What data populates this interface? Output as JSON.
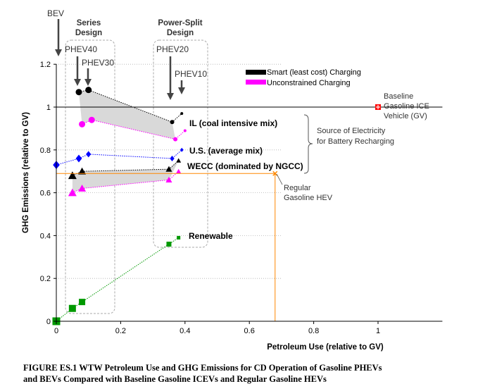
{
  "chart_data": {
    "type": "scatter",
    "xlabel": "Petroleum Use (relative to GV)",
    "ylabel": "GHG Emissions (relative to GV)",
    "xlim": [
      0,
      1.2
    ],
    "ylim": [
      0,
      1.2
    ],
    "xticks": [
      0,
      0.2,
      0.4,
      0.6,
      0.8,
      1
    ],
    "xtick_labels": [
      "0",
      "0.2",
      "0.4",
      "0.6",
      "0.8",
      "1"
    ],
    "yticks": [
      0,
      0.2,
      0.4,
      0.6,
      0.8,
      1,
      1.2
    ],
    "ytick_labels": [
      "0",
      "0.2",
      "0.4",
      "0.6",
      "0.8",
      "1",
      "1.2"
    ],
    "legend": [
      {
        "name": "Smart (least cost) Charging",
        "color": "#000000"
      },
      {
        "name": "Unconstrained Charging",
        "color": "#ff00ff"
      }
    ],
    "series": [
      {
        "name": "IL smart",
        "color": "#000000",
        "style": "dotted",
        "marker": "circle",
        "x": [
          0.07,
          0.1,
          0.36,
          0.39
        ],
        "y": [
          1.07,
          1.08,
          0.93,
          0.97
        ],
        "sizes": [
          9,
          9,
          6,
          4
        ]
      },
      {
        "name": "IL unconstrained",
        "color": "#ff00ff",
        "style": "dotted",
        "marker": "circle",
        "x": [
          0.08,
          0.11,
          0.37,
          0.4
        ],
        "y": [
          0.92,
          0.94,
          0.85,
          0.89
        ],
        "sizes": [
          9,
          9,
          6,
          4
        ]
      },
      {
        "name": "U.S. average",
        "color": "#0000ff",
        "style": "dotted",
        "marker": "diamond",
        "x": [
          0,
          0.07,
          0.1,
          0.36,
          0.39
        ],
        "y": [
          0.73,
          0.76,
          0.78,
          0.76,
          0.8
        ],
        "sizes": [
          10,
          9,
          7,
          6,
          4
        ]
      },
      {
        "name": "WECC smart",
        "color": "#000000",
        "style": "dotted",
        "marker": "triangle",
        "x": [
          0.05,
          0.08,
          0.35,
          0.38
        ],
        "y": [
          0.68,
          0.7,
          0.71,
          0.75
        ],
        "sizes": [
          10,
          9,
          7,
          5
        ]
      },
      {
        "name": "WECC unconstrained",
        "color": "#ff00ff",
        "style": "dotted",
        "marker": "triangle",
        "x": [
          0.05,
          0.08,
          0.35,
          0.38
        ],
        "y": [
          0.6,
          0.62,
          0.66,
          0.7
        ],
        "sizes": [
          10,
          9,
          7,
          5
        ]
      },
      {
        "name": "Renewable",
        "color": "#009900",
        "style": "dotted",
        "marker": "square",
        "x": [
          0,
          0.05,
          0.08,
          0.35,
          0.38
        ],
        "y": [
          0,
          0.06,
          0.09,
          0.36,
          0.39
        ],
        "sizes": [
          11,
          10,
          9,
          7,
          5
        ]
      }
    ],
    "shaded_bands": [
      {
        "name": "IL band",
        "x": [
          0.07,
          0.1,
          0.36,
          0.37,
          0.11,
          0.08
        ],
        "y": [
          1.07,
          1.08,
          0.93,
          0.85,
          0.94,
          0.92
        ]
      },
      {
        "name": "WECC band",
        "x": [
          0.05,
          0.08,
          0.35,
          0.38,
          0.35,
          0.08,
          0.05
        ],
        "y": [
          0.68,
          0.7,
          0.71,
          0.75,
          0.66,
          0.62,
          0.6
        ]
      }
    ],
    "reference_points": [
      {
        "name": "Baseline Gasoline ICE Vehicle (GV)",
        "x": 1,
        "y": 1,
        "color": "#ff0000",
        "marker": "plus-square"
      },
      {
        "name": "Regular Gasoline HEV",
        "x": 0.68,
        "y": 0.69,
        "color": "#ff8800",
        "marker": "x"
      }
    ],
    "reference_lines": [
      {
        "name": "GV baseline",
        "y": 1,
        "color": "#000000"
      },
      {
        "name": "HEV level",
        "y": 0.69,
        "x_to": 0.68,
        "color": "#ff8800"
      }
    ],
    "annotations": {
      "bev": "BEV",
      "series_design": [
        "Series",
        "Design"
      ],
      "power_split_design": [
        "Power-Split",
        "Design"
      ],
      "phev40": "PHEV40",
      "phev30": "PHEV30",
      "phev20": "PHEV20",
      "phev10": "PHEV10",
      "il": "IL (coal intensive mix)",
      "us": "U.S. (average mix)",
      "wecc": "WECC (dominated by NGCC)",
      "renewable": "Renewable",
      "baseline": [
        "Baseline",
        "Gasoline ICE",
        "Vehicle (GV)"
      ],
      "source": [
        "Source of Electricity",
        "for Battery Recharging"
      ],
      "hev": [
        "Regular",
        "Gasoline HEV"
      ]
    }
  },
  "caption": {
    "line1": "FIGURE ES.1  WTW Petroleum Use and GHG Emissions for CD Operation of Gasoline PHEVs",
    "line2": "and BEVs Compared with Baseline Gasoline ICEVs and Regular Gasoline HEVs"
  }
}
